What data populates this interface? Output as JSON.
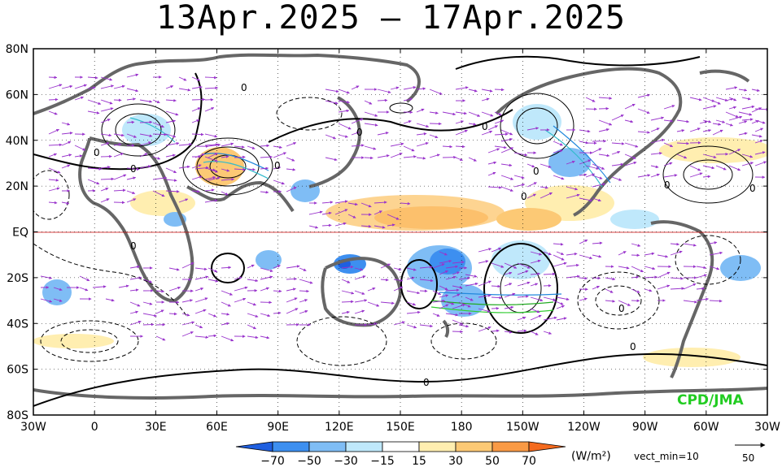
{
  "title": "13Apr.2025 – 17Apr.2025",
  "credit": "CPD/JMA",
  "axes": {
    "lat_labels": [
      "80N",
      "60N",
      "40N",
      "20N",
      "EQ",
      "20S",
      "40S",
      "60S",
      "80S"
    ],
    "lon_labels": [
      "30W",
      "0",
      "30E",
      "60E",
      "90E",
      "120E",
      "150E",
      "180",
      "150W",
      "120W",
      "90W",
      "60W",
      "30W"
    ]
  },
  "legend": {
    "values": [
      "−70",
      "−50",
      "−30",
      "−15",
      "15",
      "30",
      "50",
      "70"
    ],
    "unit": "(W/m²)",
    "vect_note": "vect_min=10",
    "ref_vector": "50",
    "colors": [
      "#1f5fe0",
      "#3d8ff0",
      "#7fbdf5",
      "#bfe8fb",
      "#ffffff",
      "#ffeeb0",
      "#fcc975",
      "#f99a45",
      "#f46a1e"
    ]
  },
  "contour_labels": [
    "0",
    "0",
    "0",
    "0",
    "0",
    "0",
    "0",
    "0",
    "0",
    "0",
    "0",
    "0",
    "0",
    "0"
  ],
  "colors": {
    "vector": "#9933cc",
    "contour": "#000000",
    "coast": "#666666",
    "equator": "#cc0000"
  }
}
